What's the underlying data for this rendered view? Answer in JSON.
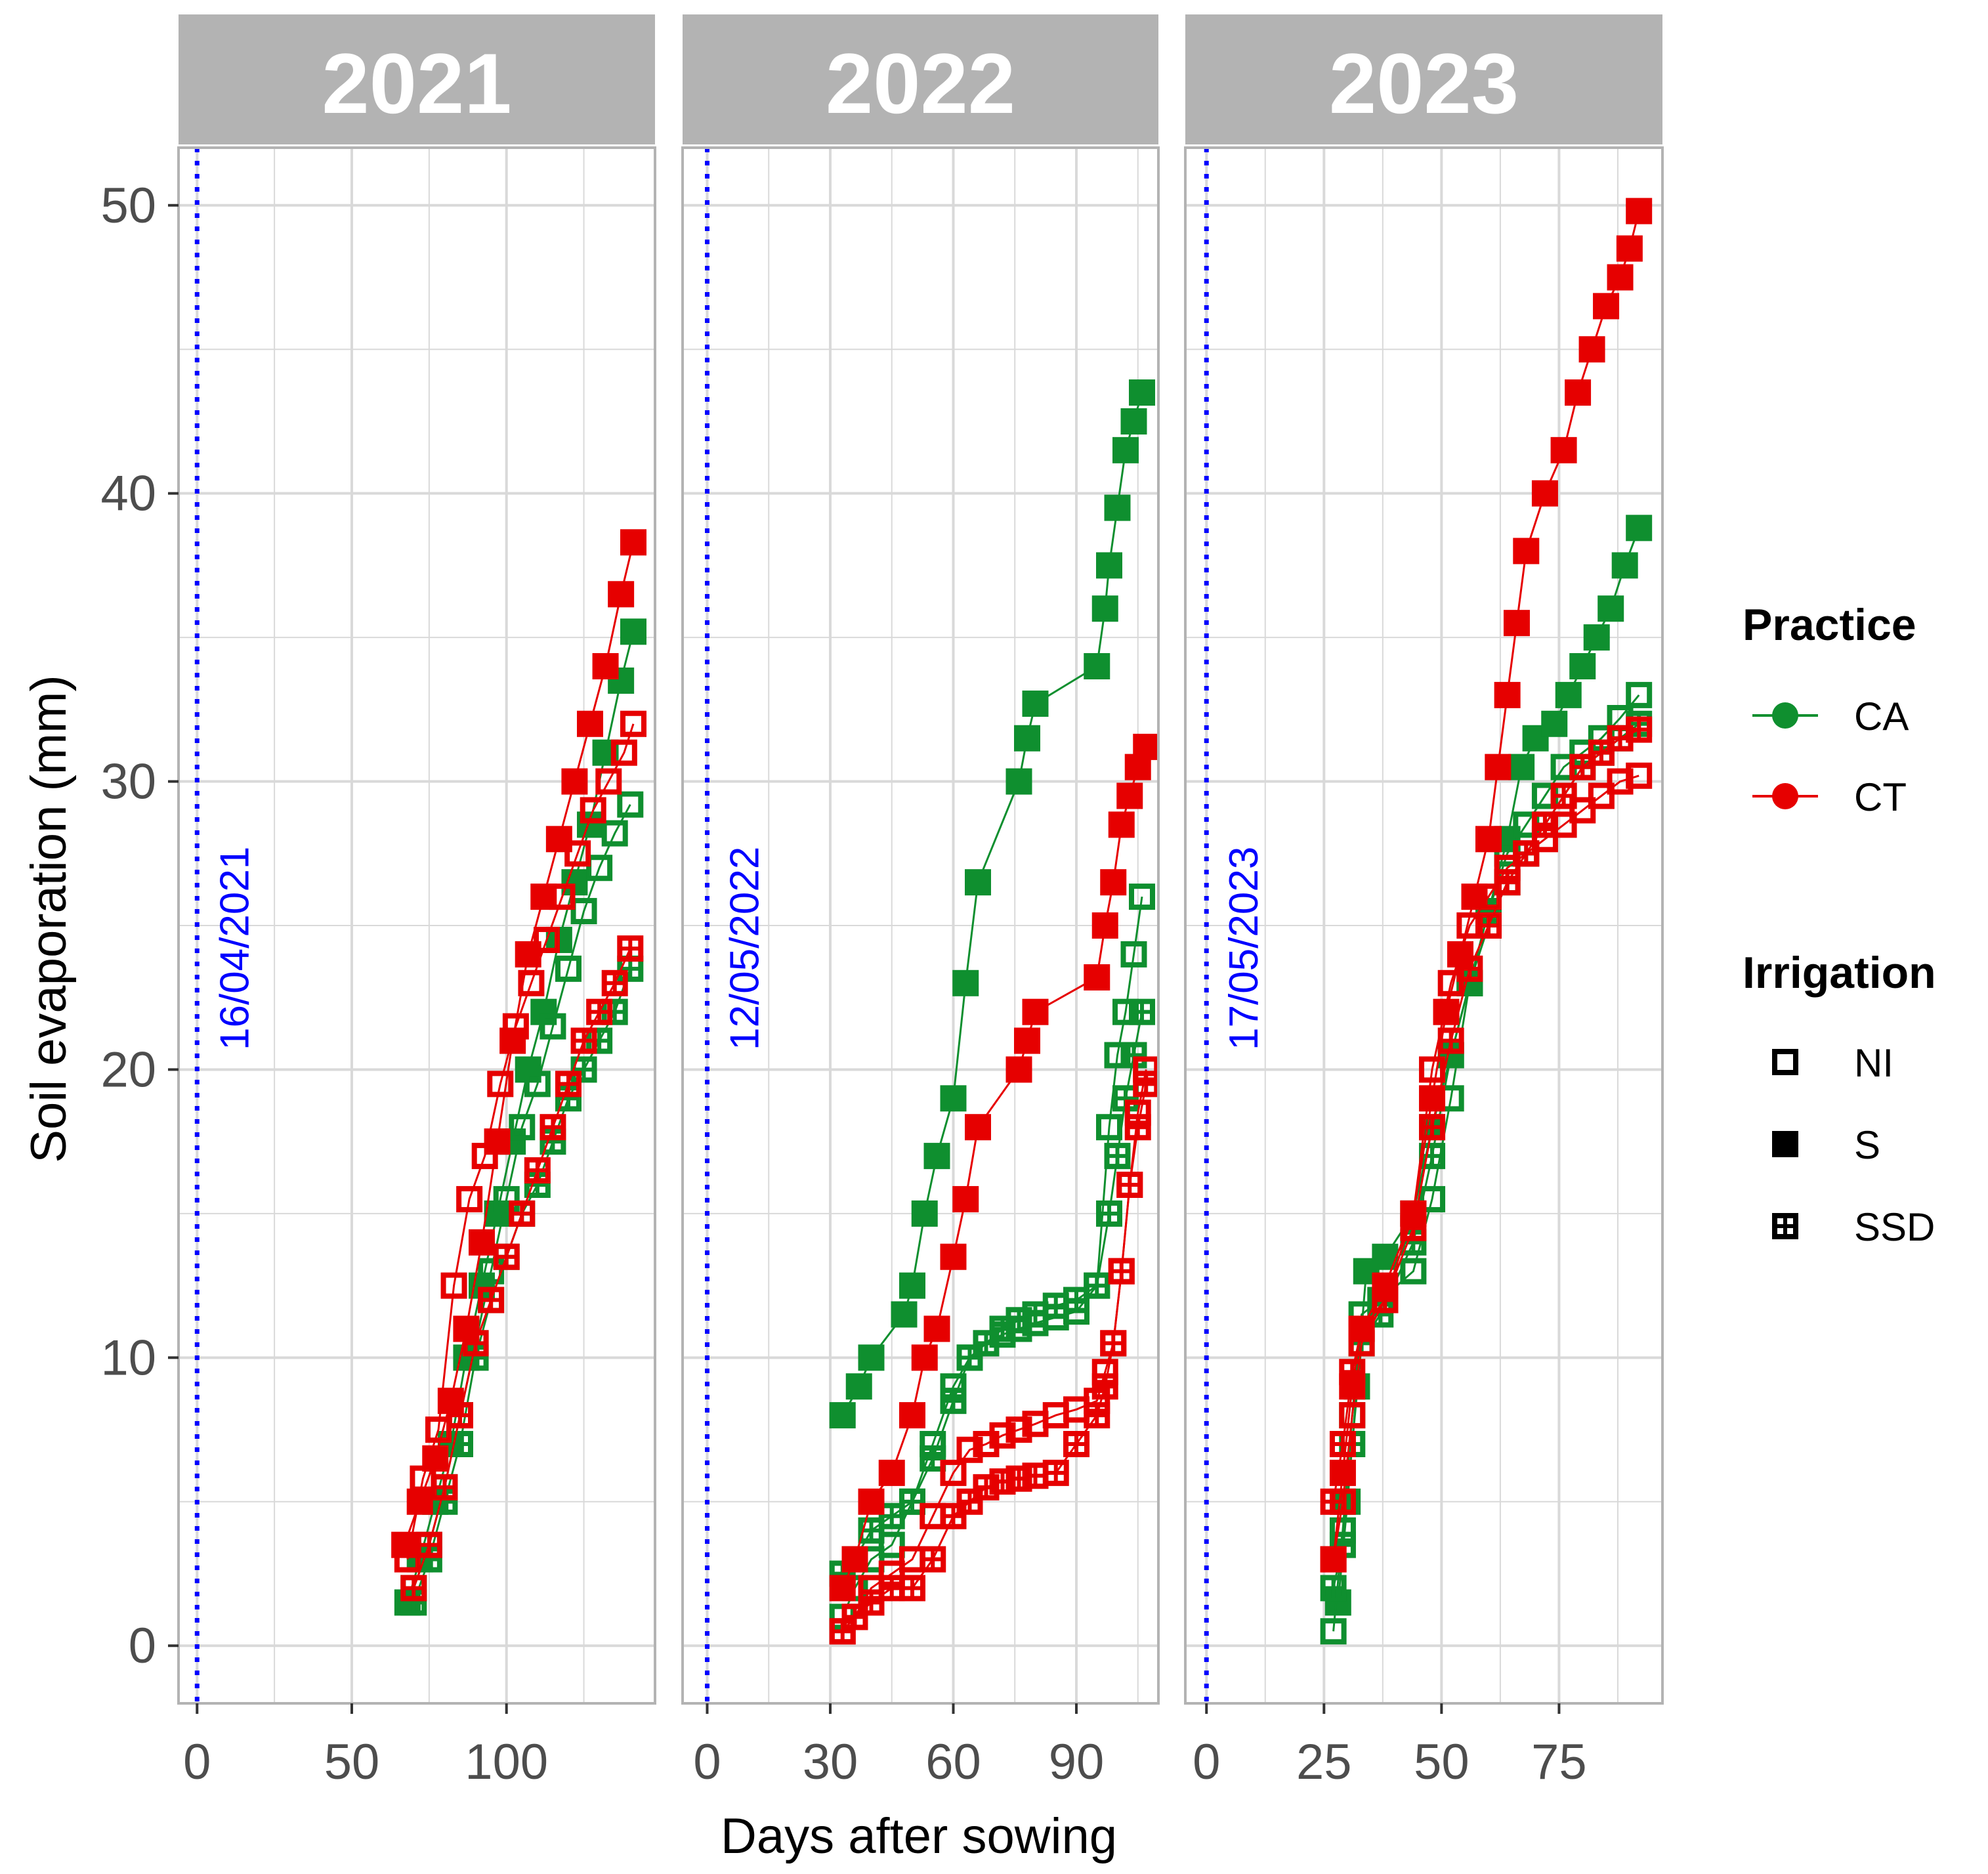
{
  "chart_data": {
    "type": "line",
    "ylabel": "Soil evaporation (mm)",
    "xlabel": "Days after sowing",
    "ylim": [
      -2,
      52
    ],
    "yticks": [
      0,
      10,
      20,
      30,
      40,
      50
    ],
    "colors": {
      "CA": "#0f8f2f",
      "CT": "#e60000",
      "date_line": "#0000ff",
      "strip_bg": "#b3b3b3",
      "grid": "#d9d9d9",
      "panel_border": "#b3b3b3"
    },
    "legend": {
      "practice_title": "Practice",
      "practice": [
        {
          "key": "CA",
          "label": "CA"
        },
        {
          "key": "CT",
          "label": "CT"
        }
      ],
      "irrigation_title": "Irrigation",
      "irrigation": [
        {
          "key": "NI",
          "label": "NI"
        },
        {
          "key": "S",
          "label": "S"
        },
        {
          "key": "SSD",
          "label": "SSD"
        }
      ]
    },
    "panels": [
      {
        "title": "2021",
        "date_label": "16/04/2021",
        "date_x": 0,
        "xlim": [
          -6,
          148
        ],
        "xticks": [
          0,
          50,
          100
        ],
        "minor_xticks": [
          25,
          75,
          125
        ],
        "series": [
          {
            "practice": "CA",
            "irrigation": "S",
            "x": [
              68,
              72,
              77,
              82,
              87,
              92,
              97,
              102,
              107,
              112,
              117,
              122,
              127,
              132,
              137,
              141
            ],
            "y": [
              1.5,
              3,
              5,
              7,
              10,
              12.5,
              15,
              17.5,
              20,
              22,
              24.5,
              26.5,
              28.5,
              31,
              33.5,
              35.2
            ]
          },
          {
            "practice": "CA",
            "irrigation": "NI",
            "x": [
              70,
              75,
              80,
              85,
              90,
              95,
              100,
              105,
              110,
              115,
              120,
              125,
              130,
              135,
              140
            ],
            "y": [
              2,
              3.5,
              5.5,
              8,
              10.5,
              13,
              15.5,
              18,
              19.5,
              21.5,
              23.5,
              25.5,
              27,
              28.2,
              29.2
            ]
          },
          {
            "practice": "CA",
            "irrigation": "SSD",
            "x": [
              70,
              75,
              80,
              85,
              90,
              95,
              100,
              105,
              110,
              115,
              120,
              125,
              130,
              135,
              140
            ],
            "y": [
              1.5,
              3,
              5,
              7,
              10,
              12,
              13.5,
              15,
              16,
              17.5,
              19,
              20,
              21,
              22,
              23.5
            ]
          },
          {
            "practice": "CT",
            "irrigation": "S",
            "x": [
              67,
              72,
              77,
              82,
              87,
              92,
              97,
              102,
              107,
              112,
              117,
              122,
              127,
              132,
              137,
              141
            ],
            "y": [
              3.5,
              5,
              6.5,
              8.5,
              11,
              14,
              17.5,
              21,
              24,
              26,
              28,
              30,
              32,
              34,
              36.5,
              38.3
            ]
          },
          {
            "practice": "CT",
            "irrigation": "NI",
            "x": [
              68,
              73,
              78,
              83,
              88,
              93,
              98,
              103,
              108,
              113,
              118,
              123,
              128,
              133,
              138,
              141
            ],
            "y": [
              3,
              5.8,
              7.5,
              12.5,
              15.5,
              17,
              19.5,
              21.5,
              23,
              24.5,
              26,
              27.5,
              29,
              30,
              31,
              32
            ]
          },
          {
            "practice": "CT",
            "irrigation": "SSD",
            "x": [
              70,
              75,
              80,
              85,
              90,
              95,
              100,
              105,
              110,
              115,
              120,
              125,
              130,
              135,
              140
            ],
            "y": [
              2,
              3.5,
              5.5,
              8,
              10.5,
              12,
              13.5,
              15,
              16.5,
              18,
              19.5,
              21,
              22,
              23,
              24.2
            ]
          }
        ]
      },
      {
        "title": "2022",
        "date_label": "12/05/2022",
        "date_x": 0,
        "xlim": [
          -6,
          110
        ],
        "xticks": [
          0,
          30,
          60,
          90
        ],
        "minor_xticks": [
          15,
          45,
          75,
          105
        ],
        "series": [
          {
            "practice": "CA",
            "irrigation": "S",
            "x": [
              33,
              37,
              40,
              48,
              50,
              53,
              56,
              60,
              63,
              66,
              76,
              78,
              80,
              95,
              97,
              98,
              100,
              102,
              104,
              106
            ],
            "y": [
              8,
              9,
              10,
              11.5,
              12.5,
              15,
              17,
              19,
              23,
              26.5,
              30,
              31.5,
              32.7,
              34,
              36,
              37.5,
              39.5,
              41.5,
              42.5,
              43.5
            ]
          },
          {
            "practice": "CA",
            "irrigation": "NI",
            "x": [
              33,
              36,
              40,
              45,
              50,
              55,
              60,
              64,
              68,
              72,
              76,
              80,
              85,
              90,
              95,
              98,
              100,
              102,
              104,
              106
            ],
            "y": [
              1,
              2,
              3,
              3.5,
              5,
              7,
              9,
              10,
              10.5,
              10.8,
              11,
              11.2,
              11.4,
              11.6,
              12.5,
              18,
              20.5,
              22,
              24,
              26
            ]
          },
          {
            "practice": "CA",
            "irrigation": "SSD",
            "x": [
              33,
              36,
              40,
              45,
              50,
              55,
              60,
              64,
              68,
              72,
              76,
              80,
              85,
              90,
              95,
              98,
              100,
              102,
              104,
              106
            ],
            "y": [
              2.5,
              3,
              4,
              4.5,
              5,
              6.5,
              8.5,
              10,
              10.5,
              11,
              11.3,
              11.5,
              11.8,
              12,
              12.5,
              15,
              17,
              19,
              20.5,
              22
            ]
          },
          {
            "practice": "CT",
            "irrigation": "S",
            "x": [
              33,
              36,
              40,
              45,
              50,
              53,
              56,
              60,
              63,
              66,
              76,
              78,
              80,
              95,
              97,
              99,
              101,
              103,
              105,
              107
            ],
            "y": [
              2,
              3,
              5,
              6,
              8,
              10,
              11,
              13.5,
              15.5,
              18,
              20,
              21,
              22,
              23.2,
              25,
              26.5,
              28.5,
              29.5,
              30.5,
              31.2
            ]
          },
          {
            "practice": "CT",
            "irrigation": "NI",
            "x": [
              33,
              36,
              40,
              45,
              50,
              55,
              60,
              64,
              68,
              72,
              76,
              80,
              85,
              90,
              95,
              97,
              99,
              101,
              103,
              105,
              107
            ],
            "y": [
              0.5,
              1,
              2,
              2.5,
              3,
              4.5,
              6,
              6.8,
              7,
              7.3,
              7.5,
              7.7,
              8,
              8.2,
              8.5,
              9.5,
              10.5,
              13,
              16,
              18.5,
              20
            ]
          },
          {
            "practice": "CT",
            "irrigation": "SSD",
            "x": [
              33,
              36,
              40,
              45,
              50,
              55,
              60,
              64,
              68,
              72,
              76,
              80,
              85,
              90,
              95,
              97,
              99,
              101,
              103,
              105,
              107
            ],
            "y": [
              0.5,
              1,
              1.5,
              2,
              2,
              3,
              4.5,
              5,
              5.5,
              5.7,
              5.8,
              5.9,
              6,
              7,
              8,
              9,
              10.5,
              13,
              16,
              18,
              19.5
            ]
          }
        ]
      },
      {
        "title": "2023",
        "date_label": "17/05/2023",
        "date_x": 0,
        "xlim": [
          -4.5,
          97
        ],
        "xticks": [
          0,
          25,
          50,
          75
        ],
        "minor_xticks": [
          12.5,
          37.5,
          62.5,
          87.5
        ],
        "series": [
          {
            "practice": "CA",
            "irrigation": "S",
            "x": [
              28,
              30,
              32,
              34,
              38,
              44,
              48,
              52,
              56,
              60,
              64,
              67,
              70,
              74,
              77,
              80,
              83,
              86,
              89,
              92
            ],
            "y": [
              1.5,
              5,
              9,
              13,
              13.5,
              15,
              18,
              20.5,
              23,
              25.5,
              28,
              30.5,
              31.5,
              32,
              33,
              34,
              35,
              36,
              37.5,
              38.8
            ]
          },
          {
            "practice": "CA",
            "irrigation": "NI",
            "x": [
              27,
              29,
              31,
              33,
              37,
              44,
              48,
              52,
              56,
              60,
              64,
              68,
              72,
              76,
              80,
              84,
              88,
              92
            ],
            "y": [
              0.5,
              4,
              8,
              11.5,
              12,
              13,
              15.5,
              19,
              23,
              25.5,
              27.5,
              28.5,
              29.5,
              30.5,
              31,
              31.5,
              32.2,
              33
            ]
          },
          {
            "practice": "CA",
            "irrigation": "SSD",
            "x": [
              27,
              29,
              31,
              33,
              37,
              44,
              48,
              52,
              56,
              60,
              64,
              68,
              72,
              76,
              80,
              84,
              88,
              92
            ],
            "y": [
              2,
              3.5,
              7,
              10.5,
              11.5,
              14,
              17,
              20.5,
              23,
              25,
              26.5,
              27.5,
              28.5,
              29.5,
              30.5,
              31,
              31.5,
              32
            ]
          },
          {
            "practice": "CT",
            "irrigation": "S",
            "x": [
              27,
              29,
              31,
              33,
              38,
              44,
              48,
              51,
              54,
              57,
              60,
              62,
              64,
              66,
              68,
              72,
              76,
              79,
              82,
              85,
              88,
              90,
              92
            ],
            "y": [
              3,
              6,
              9,
              11,
              12.5,
              15,
              19,
              22,
              24,
              26,
              28,
              30.5,
              33,
              35.5,
              38,
              40,
              41.5,
              43.5,
              45,
              46.5,
              47.5,
              48.5,
              49.8
            ]
          },
          {
            "practice": "CT",
            "irrigation": "NI",
            "x": [
              27,
              29,
              31,
              33,
              38,
              44,
              48,
              52,
              56,
              60,
              64,
              68,
              72,
              76,
              80,
              84,
              88,
              92
            ],
            "y": [
              3,
              5,
              8,
              10.5,
              12,
              15,
              20,
              23,
              25,
              26,
              27,
              27.5,
              28,
              28.5,
              29,
              29.5,
              30,
              30.2
            ]
          },
          {
            "practice": "CT",
            "irrigation": "SSD",
            "x": [
              27,
              29,
              31,
              33,
              38,
              44,
              48,
              52,
              56,
              60,
              64,
              68,
              72,
              76,
              80,
              84,
              88,
              92
            ],
            "y": [
              5,
              7,
              9.5,
              11,
              12,
              14.5,
              18,
              21,
              23.5,
              25,
              26.5,
              27.5,
              28.5,
              29.5,
              30.5,
              31,
              31.5,
              31.8
            ]
          }
        ]
      }
    ]
  }
}
